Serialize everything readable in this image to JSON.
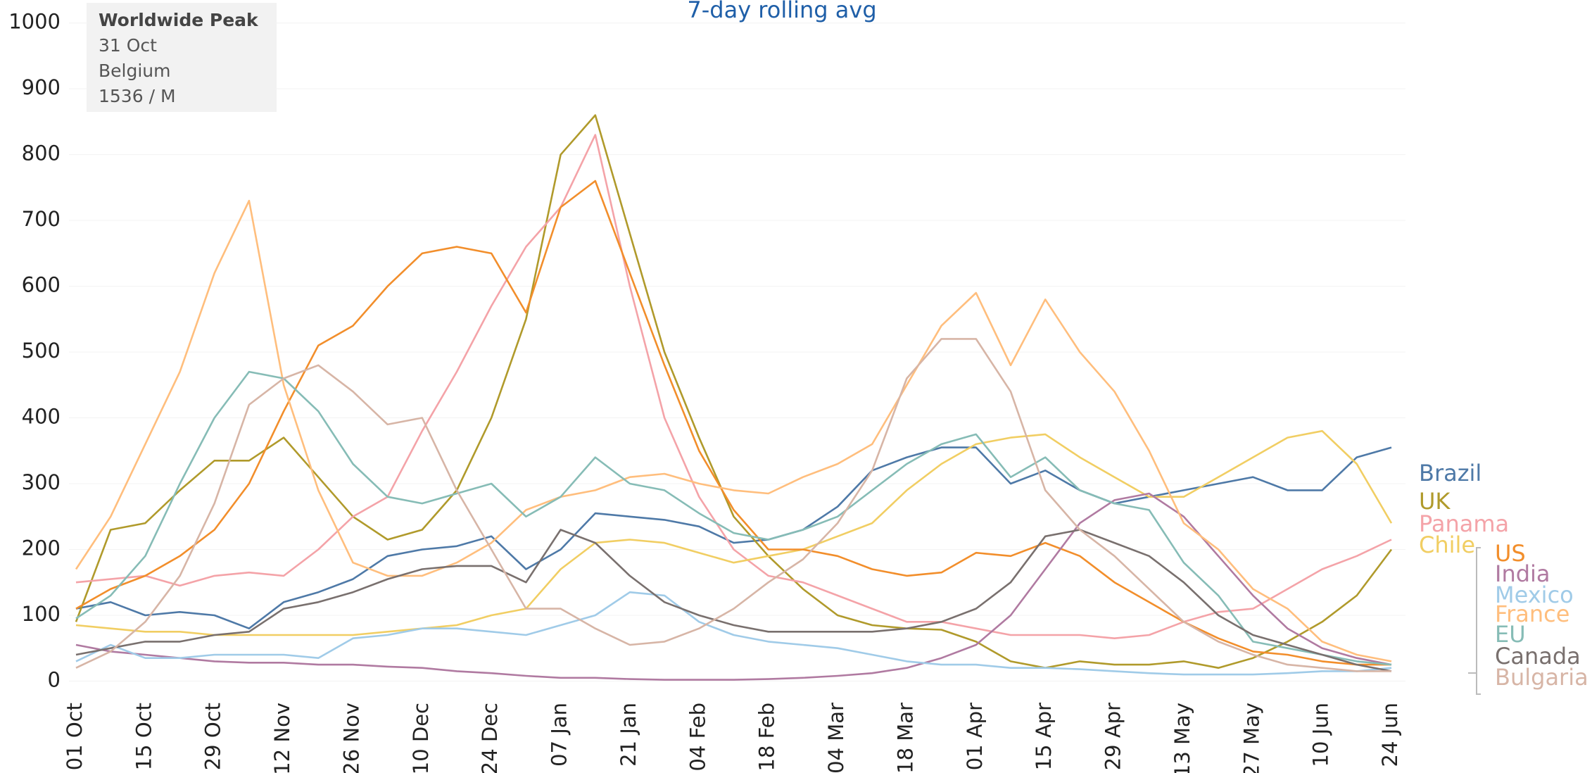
{
  "chart_data": {
    "type": "line",
    "title": "7-day rolling avg",
    "tooltip": {
      "title": "Worldwide Peak",
      "date": "31 Oct",
      "country": "Belgium",
      "value": "1536 / M"
    },
    "categories": [
      "01 Oct",
      null,
      "15 Oct",
      null,
      "29 Oct",
      null,
      "12 Nov",
      null,
      "26 Nov",
      null,
      "10 Dec",
      null,
      "24 Dec",
      null,
      "07 Jan",
      null,
      "21 Jan",
      null,
      "04 Feb",
      null,
      "18 Feb",
      null,
      "04 Mar",
      null,
      "18 Mar",
      null,
      "01 Apr",
      null,
      "15 Apr",
      null,
      "29 Apr",
      null,
      "13 May",
      null,
      "27 May",
      null,
      "10 Jun",
      null,
      "24 Jun"
    ],
    "ylim": [
      -22,
      1035
    ],
    "yticks": [
      0,
      100,
      200,
      300,
      400,
      500,
      600,
      700,
      800,
      900,
      1000
    ],
    "grid": true,
    "series": [
      {
        "name": "Brazil",
        "color": "#4e79a7",
        "values": [
          110,
          120,
          100,
          105,
          100,
          80,
          120,
          135,
          155,
          190,
          200,
          205,
          220,
          170,
          200,
          255,
          250,
          245,
          235,
          210,
          215,
          230,
          265,
          320,
          340,
          355,
          355,
          300,
          320,
          290,
          270,
          280,
          290,
          300,
          310,
          290,
          290,
          340,
          355
        ]
      },
      {
        "name": "UK",
        "color": "#b09a2b",
        "values": [
          90,
          230,
          240,
          290,
          335,
          335,
          370,
          310,
          250,
          215,
          230,
          290,
          400,
          550,
          800,
          860,
          680,
          500,
          370,
          250,
          190,
          140,
          100,
          85,
          80,
          78,
          60,
          30,
          20,
          30,
          25,
          25,
          30,
          20,
          35,
          60,
          90,
          130,
          200
        ]
      },
      {
        "name": "Panama",
        "color": "#f4a3a8",
        "values": [
          150,
          155,
          160,
          145,
          160,
          165,
          160,
          200,
          250,
          280,
          380,
          470,
          570,
          660,
          720,
          830,
          600,
          400,
          280,
          200,
          160,
          150,
          130,
          110,
          90,
          90,
          80,
          70,
          70,
          70,
          65,
          70,
          90,
          105,
          110,
          140,
          170,
          190,
          215
        ]
      },
      {
        "name": "Chile",
        "color": "#f1ce63",
        "values": [
          85,
          80,
          75,
          75,
          70,
          70,
          70,
          70,
          70,
          75,
          80,
          85,
          100,
          110,
          170,
          210,
          215,
          210,
          195,
          180,
          190,
          200,
          220,
          240,
          290,
          330,
          360,
          370,
          375,
          340,
          310,
          280,
          280,
          310,
          340,
          370,
          380,
          330,
          240
        ]
      },
      {
        "name": "US",
        "color": "#f28e2b",
        "values": [
          110,
          140,
          160,
          190,
          230,
          300,
          410,
          510,
          540,
          600,
          650,
          660,
          650,
          560,
          720,
          760,
          620,
          480,
          350,
          260,
          200,
          200,
          190,
          170,
          160,
          165,
          195,
          190,
          210,
          190,
          150,
          120,
          90,
          65,
          45,
          40,
          30,
          25,
          25
        ]
      },
      {
        "name": "India",
        "color": "#b07aa1",
        "values": [
          55,
          45,
          40,
          35,
          30,
          28,
          28,
          25,
          25,
          22,
          20,
          15,
          12,
          8,
          5,
          5,
          3,
          2,
          2,
          2,
          3,
          5,
          8,
          12,
          20,
          35,
          55,
          100,
          170,
          240,
          275,
          285,
          250,
          190,
          130,
          80,
          50,
          35,
          25
        ]
      },
      {
        "name": "Mexico",
        "color": "#a0cbe8",
        "values": [
          30,
          55,
          35,
          35,
          40,
          40,
          40,
          35,
          65,
          70,
          80,
          80,
          75,
          70,
          85,
          100,
          135,
          130,
          90,
          70,
          60,
          55,
          50,
          40,
          30,
          25,
          25,
          20,
          20,
          18,
          15,
          12,
          10,
          10,
          10,
          12,
          15,
          15,
          20
        ]
      },
      {
        "name": "France",
        "color": "#ffbe7d",
        "values": [
          170,
          250,
          360,
          470,
          620,
          730,
          450,
          290,
          180,
          160,
          160,
          180,
          210,
          260,
          280,
          290,
          310,
          315,
          300,
          290,
          285,
          310,
          330,
          360,
          450,
          540,
          590,
          480,
          580,
          500,
          440,
          350,
          240,
          200,
          140,
          110,
          60,
          40,
          30
        ]
      },
      {
        "name": "EU",
        "color": "#86bcb6",
        "values": [
          95,
          130,
          190,
          300,
          400,
          470,
          460,
          410,
          330,
          280,
          270,
          285,
          300,
          250,
          280,
          340,
          300,
          290,
          255,
          225,
          215,
          230,
          250,
          290,
          330,
          360,
          375,
          310,
          340,
          290,
          270,
          260,
          180,
          130,
          60,
          50,
          40,
          30,
          25
        ]
      },
      {
        "name": "Canada",
        "color": "#79706e",
        "values": [
          40,
          50,
          60,
          60,
          70,
          75,
          110,
          120,
          135,
          155,
          170,
          175,
          175,
          150,
          230,
          210,
          160,
          120,
          100,
          85,
          75,
          75,
          75,
          75,
          80,
          90,
          110,
          150,
          220,
          230,
          210,
          190,
          150,
          100,
          70,
          55,
          40,
          25,
          15
        ]
      },
      {
        "name": "Bulgaria",
        "color": "#d7b5a6",
        "values": [
          20,
          45,
          90,
          160,
          270,
          420,
          460,
          480,
          440,
          390,
          400,
          290,
          200,
          110,
          110,
          80,
          55,
          60,
          80,
          110,
          150,
          185,
          240,
          320,
          460,
          520,
          520,
          440,
          290,
          230,
          190,
          140,
          90,
          60,
          40,
          25,
          20,
          15,
          15
        ]
      }
    ]
  }
}
